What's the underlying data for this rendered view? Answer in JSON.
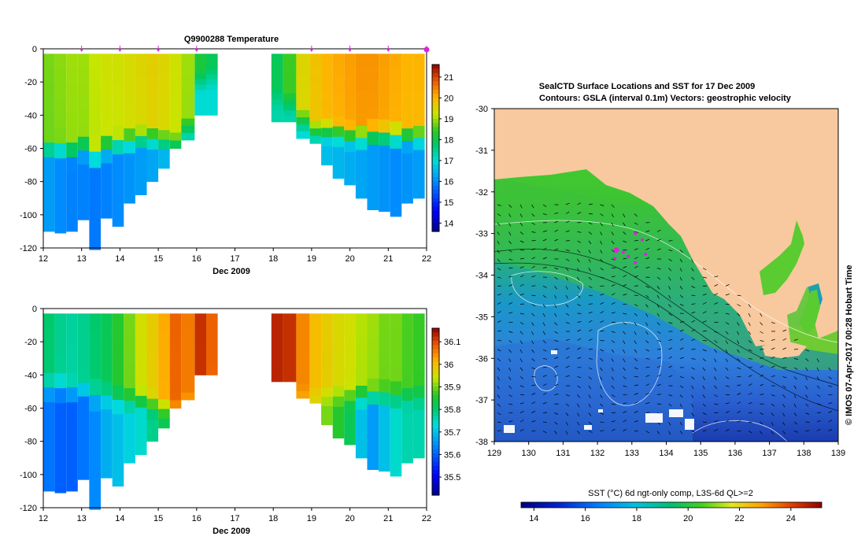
{
  "top_panel": {
    "title": "Q9900288  Temperature",
    "xlabel": "Dec 2009",
    "x_ticks": [
      12,
      13,
      14,
      15,
      16,
      17,
      18,
      19,
      20,
      21,
      22
    ],
    "y_ticks": [
      0,
      -20,
      -40,
      -60,
      -80,
      -100,
      -120
    ],
    "colorbar_ticks": [
      14,
      15,
      16,
      17,
      18,
      19,
      20,
      21
    ],
    "colorbar_range": [
      13.6,
      21.6
    ]
  },
  "bottom_panel": {
    "title": "",
    "xlabel": "Dec 2009",
    "x_ticks": [
      12,
      13,
      14,
      15,
      16,
      17,
      18,
      19,
      20,
      21,
      22
    ],
    "y_ticks": [
      0,
      -20,
      -40,
      -60,
      -80,
      -100,
      -120
    ],
    "colorbar_ticks": [
      35.5,
      35.6,
      35.7,
      35.8,
      35.9,
      36,
      36.1
    ],
    "colorbar_range": [
      35.42,
      36.16
    ]
  },
  "map_panel": {
    "title_line1": "SealCTD Surface Locations and SST for 17 Dec 2009",
    "title_line2": "Contours: GSLA (interval 0.1m) Vectors: geostrophic velocity",
    "x_ticks": [
      129,
      130,
      131,
      132,
      133,
      134,
      135,
      136,
      137,
      138,
      139
    ],
    "y_ticks": [
      -30,
      -31,
      -32,
      -33,
      -34,
      -35,
      -36,
      -37,
      -38
    ],
    "side_label": "© IMOS 07-Apr-2017 00:28 Hobart Time",
    "sst_label": "SST (°C) 6d ngt-only comp, L3S-6d QL>=2",
    "sst_ticks": [
      14,
      16,
      18,
      20,
      22,
      24
    ],
    "sst_range": [
      13.5,
      25.2
    ]
  },
  "colors": {
    "land": "#f8c99e",
    "axis": "#000000",
    "marker": "#e020e0"
  },
  "chart_data": [
    {
      "type": "heatmap",
      "title": "Q9900288  Temperature",
      "xlabel": "Dec 2009",
      "ylabel": "",
      "xlim": [
        12,
        22
      ],
      "ylim": [
        -120,
        0
      ],
      "colorbar": {
        "min": 13.6,
        "max": 21.6,
        "ticks": [
          14,
          15,
          16,
          17,
          18,
          19,
          20,
          21
        ]
      },
      "profiles": [
        {
          "day": 12.15,
          "mld": -53,
          "surf": 18.8,
          "deep": 16.2,
          "max_depth": -110
        },
        {
          "day": 12.45,
          "mld": -52,
          "surf": 18.9,
          "deep": 16.0,
          "max_depth": -111
        },
        {
          "day": 12.75,
          "mld": -55,
          "surf": 19.0,
          "deep": 15.9,
          "max_depth": -110
        },
        {
          "day": 13.05,
          "mld": -52,
          "surf": 19.0,
          "deep": 15.9,
          "max_depth": -103
        },
        {
          "day": 13.35,
          "mld": -57,
          "surf": 19.2,
          "deep": 15.8,
          "max_depth": -121
        },
        {
          "day": 13.65,
          "mld": -52,
          "surf": 19.3,
          "deep": 15.9,
          "max_depth": -102
        },
        {
          "day": 13.95,
          "mld": -50,
          "surf": 19.3,
          "deep": 16.0,
          "max_depth": -107
        },
        {
          "day": 14.25,
          "mld": -48,
          "surf": 19.4,
          "deep": 16.1,
          "max_depth": -93
        },
        {
          "day": 14.55,
          "mld": -47,
          "surf": 19.5,
          "deep": 16.2,
          "max_depth": -88
        },
        {
          "day": 14.85,
          "mld": -46,
          "surf": 19.6,
          "deep": 16.3,
          "max_depth": -80
        },
        {
          "day": 15.15,
          "mld": -48,
          "surf": 19.5,
          "deep": 16.5,
          "max_depth": -72
        },
        {
          "day": 15.45,
          "mld": -50,
          "surf": 19.3,
          "deep": 16.6,
          "max_depth": -60
        },
        {
          "day": 15.75,
          "mld": -40,
          "surf": 19.0,
          "deep": 17.0,
          "max_depth": -55
        },
        {
          "day": 16.1,
          "mld": -12,
          "surf": 18.2,
          "deep": 17.0,
          "max_depth": -40
        },
        {
          "day": 16.4,
          "mld": -10,
          "surf": 17.9,
          "deep": 17.0,
          "max_depth": -40
        },
        {
          "day": 18.1,
          "mld": -22,
          "surf": 17.9,
          "deep": 17.3,
          "max_depth": -44
        },
        {
          "day": 18.4,
          "mld": -25,
          "surf": 18.5,
          "deep": 17.3,
          "max_depth": -44
        },
        {
          "day": 18.75,
          "mld": -35,
          "surf": 19.5,
          "deep": 17.0,
          "max_depth": -54
        },
        {
          "day": 19.1,
          "mld": -42,
          "surf": 19.8,
          "deep": 16.8,
          "max_depth": -57
        },
        {
          "day": 19.4,
          "mld": -42,
          "surf": 20.0,
          "deep": 16.6,
          "max_depth": -70
        },
        {
          "day": 19.7,
          "mld": -43,
          "surf": 20.1,
          "deep": 16.5,
          "max_depth": -78
        },
        {
          "day": 20.0,
          "mld": -45,
          "surf": 20.2,
          "deep": 16.4,
          "max_depth": -82
        },
        {
          "day": 20.3,
          "mld": -45,
          "surf": 20.3,
          "deep": 16.3,
          "max_depth": -90
        },
        {
          "day": 20.6,
          "mld": -45,
          "surf": 20.3,
          "deep": 16.2,
          "max_depth": -97
        },
        {
          "day": 20.9,
          "mld": -45,
          "surf": 20.2,
          "deep": 16.1,
          "max_depth": -98
        },
        {
          "day": 21.2,
          "mld": -45,
          "surf": 20.1,
          "deep": 16.0,
          "max_depth": -101
        },
        {
          "day": 21.5,
          "mld": -45,
          "surf": 20.0,
          "deep": 16.1,
          "max_depth": -93
        },
        {
          "day": 21.8,
          "mld": -45,
          "surf": 20.0,
          "deep": 16.2,
          "max_depth": -90
        }
      ],
      "markers_days": [
        13,
        14,
        15,
        16,
        19,
        20,
        21,
        22
      ]
    },
    {
      "type": "heatmap",
      "title": "",
      "xlabel": "Dec 2009",
      "ylabel": "",
      "xlim": [
        12,
        22
      ],
      "ylim": [
        -120,
        0
      ],
      "colorbar": {
        "min": 35.42,
        "max": 36.16,
        "ticks": [
          35.5,
          35.6,
          35.7,
          35.8,
          35.9,
          36,
          36.1
        ]
      },
      "profiles": [
        {
          "day": 12.15,
          "mld": -40,
          "surf": 35.8,
          "deep": 35.62,
          "max_depth": -110
        },
        {
          "day": 12.45,
          "mld": -40,
          "surf": 35.78,
          "deep": 35.6,
          "max_depth": -111
        },
        {
          "day": 12.75,
          "mld": -42,
          "surf": 35.77,
          "deep": 35.6,
          "max_depth": -110
        },
        {
          "day": 13.05,
          "mld": -42,
          "surf": 35.78,
          "deep": 35.62,
          "max_depth": -103
        },
        {
          "day": 13.35,
          "mld": -45,
          "surf": 35.8,
          "deep": 35.64,
          "max_depth": -121
        },
        {
          "day": 13.65,
          "mld": -45,
          "surf": 35.82,
          "deep": 35.68,
          "max_depth": -102
        },
        {
          "day": 13.95,
          "mld": -47,
          "surf": 35.86,
          "deep": 35.7,
          "max_depth": -107
        },
        {
          "day": 14.25,
          "mld": -48,
          "surf": 35.9,
          "deep": 35.72,
          "max_depth": -93
        },
        {
          "day": 14.55,
          "mld": -48,
          "surf": 35.95,
          "deep": 35.74,
          "max_depth": -88
        },
        {
          "day": 14.85,
          "mld": -50,
          "surf": 35.98,
          "deep": 35.78,
          "max_depth": -80
        },
        {
          "day": 15.15,
          "mld": -52,
          "surf": 36.02,
          "deep": 35.82,
          "max_depth": -72
        },
        {
          "day": 15.45,
          "mld": -55,
          "surf": 36.08,
          "deep": 35.9,
          "max_depth": -60
        },
        {
          "day": 15.75,
          "mld": -50,
          "surf": 36.06,
          "deep": 35.95,
          "max_depth": -55
        },
        {
          "day": 16.1,
          "mld": -40,
          "surf": 36.12,
          "deep": 36.05,
          "max_depth": -40
        },
        {
          "day": 16.4,
          "mld": -40,
          "surf": 36.08,
          "deep": 36.02,
          "max_depth": -40
        },
        {
          "day": 18.1,
          "mld": -44,
          "surf": 36.13,
          "deep": 36.1,
          "max_depth": -44
        },
        {
          "day": 18.4,
          "mld": -44,
          "surf": 36.12,
          "deep": 36.1,
          "max_depth": -44
        },
        {
          "day": 18.75,
          "mld": -45,
          "surf": 36.05,
          "deep": 36.0,
          "max_depth": -54
        },
        {
          "day": 19.1,
          "mld": -45,
          "surf": 36.0,
          "deep": 35.95,
          "max_depth": -57
        },
        {
          "day": 19.4,
          "mld": -45,
          "surf": 35.98,
          "deep": 35.9,
          "max_depth": -70
        },
        {
          "day": 19.7,
          "mld": -45,
          "surf": 35.96,
          "deep": 35.86,
          "max_depth": -78
        },
        {
          "day": 20.0,
          "mld": -45,
          "surf": 35.95,
          "deep": 35.82,
          "max_depth": -82
        },
        {
          "day": 20.3,
          "mld": -45,
          "surf": 35.93,
          "deep": 35.7,
          "max_depth": -90
        },
        {
          "day": 20.6,
          "mld": -45,
          "surf": 35.92,
          "deep": 35.66,
          "max_depth": -97
        },
        {
          "day": 20.9,
          "mld": -45,
          "surf": 35.9,
          "deep": 35.7,
          "max_depth": -98
        },
        {
          "day": 21.2,
          "mld": -45,
          "surf": 35.9,
          "deep": 35.74,
          "max_depth": -101
        },
        {
          "day": 21.5,
          "mld": -45,
          "surf": 35.88,
          "deep": 35.76,
          "max_depth": -93
        },
        {
          "day": 21.8,
          "mld": -45,
          "surf": 35.87,
          "deep": 35.76,
          "max_depth": -90
        }
      ]
    },
    {
      "type": "heatmap",
      "title": "SealCTD Surface Locations and SST for 17 Dec 2009",
      "xlabel": "",
      "ylabel": "",
      "xlim": [
        129,
        139
      ],
      "ylim": [
        -38,
        -30
      ],
      "colorbar": {
        "min": 13.5,
        "max": 25.2,
        "ticks": [
          14,
          16,
          18,
          20,
          22,
          24
        ]
      },
      "stations": [
        [
          132.55,
          -33.4
        ],
        [
          132.75,
          -33.45
        ],
        [
          132.5,
          -33.6
        ],
        [
          132.9,
          -33.55
        ],
        [
          133.1,
          -33.7
        ],
        [
          133.3,
          -33.15
        ],
        [
          133.4,
          -33.5
        ],
        [
          133.1,
          -33.0
        ]
      ]
    }
  ]
}
